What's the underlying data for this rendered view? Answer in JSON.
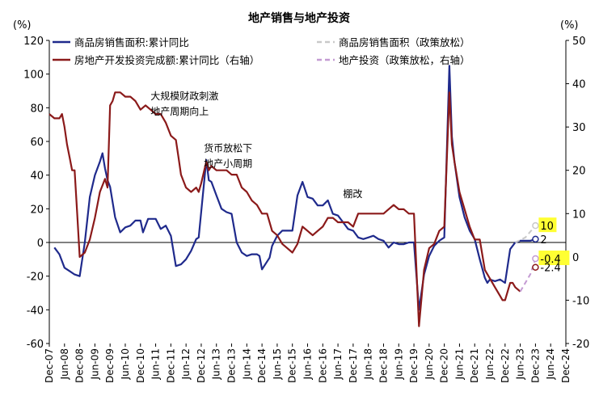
{
  "chart_data": {
    "type": "line",
    "title": "地产销售与地产投资",
    "left_unit": "(%)",
    "right_unit": "(%)",
    "ylim_left": [
      -60,
      120
    ],
    "yticks_left": [
      -60,
      -40,
      -20,
      0,
      20,
      40,
      60,
      80,
      100,
      120
    ],
    "ylim_right": [
      -20,
      50
    ],
    "yticks_right": [
      -20,
      -10,
      0,
      10,
      20,
      30,
      40,
      50
    ],
    "x_tick_labels": [
      "Dec-07",
      "Jun-08",
      "Dec-08",
      "Jun-09",
      "Dec-09",
      "Jun-10",
      "Dec-10",
      "Jun-11",
      "Dec-11",
      "Jun-12",
      "Dec-12",
      "Jun-13",
      "Dec-13",
      "Jun-14",
      "Dec-14",
      "Jun-15",
      "Dec-15",
      "Jun-16",
      "Dec-16",
      "Jun-17",
      "Dec-17",
      "Jun-18",
      "Dec-18",
      "Jun-19",
      "Dec-19",
      "Jun-20",
      "Dec-20",
      "Jun-21",
      "Dec-21",
      "Jun-22",
      "Dec-22",
      "Jun-23",
      "Dec-23",
      "Jun-24",
      "Dec-24"
    ],
    "legend": {
      "placement": "top"
    },
    "series": [
      {
        "name": "商品房销售面积:累计同比",
        "axis": "left",
        "color": "#1f2a8c",
        "dash": false,
        "points": [
          [
            "Feb-08",
            -3
          ],
          [
            "Apr-08",
            -7
          ],
          [
            "Jun-08",
            -15
          ],
          [
            "Aug-08",
            -17
          ],
          [
            "Oct-08",
            -19
          ],
          [
            "Dec-08",
            -20
          ],
          [
            "Feb-09",
            0
          ],
          [
            "Apr-09",
            27
          ],
          [
            "Jun-09",
            40
          ],
          [
            "Aug-09",
            48
          ],
          [
            "Sep-09",
            53
          ],
          [
            "Oct-09",
            44
          ],
          [
            "Nov-09",
            37
          ],
          [
            "Dec-09",
            33
          ],
          [
            "Feb-10",
            15
          ],
          [
            "Apr-10",
            6
          ],
          [
            "Jun-10",
            9
          ],
          [
            "Aug-10",
            10
          ],
          [
            "Oct-10",
            13
          ],
          [
            "Dec-10",
            13
          ],
          [
            "Jan-11",
            6
          ],
          [
            "Mar-11",
            14
          ],
          [
            "Jun-11",
            14
          ],
          [
            "Aug-11",
            8
          ],
          [
            "Oct-11",
            10
          ],
          [
            "Dec-11",
            4
          ],
          [
            "Feb-12",
            -14
          ],
          [
            "Apr-12",
            -13
          ],
          [
            "Jun-12",
            -10
          ],
          [
            "Aug-12",
            -5
          ],
          [
            "Oct-12",
            2
          ],
          [
            "Nov-12",
            3
          ],
          [
            "Feb-13",
            49
          ],
          [
            "Mar-13",
            37
          ],
          [
            "Apr-13",
            36
          ],
          [
            "Jun-13",
            28
          ],
          [
            "Aug-13",
            20
          ],
          [
            "Oct-13",
            18
          ],
          [
            "Dec-13",
            17
          ],
          [
            "Feb-14",
            0
          ],
          [
            "Apr-14",
            -6
          ],
          [
            "Jun-14",
            -8
          ],
          [
            "Aug-14",
            -7
          ],
          [
            "Oct-14",
            -7
          ],
          [
            "Nov-14",
            -8
          ],
          [
            "Dec-14",
            -16
          ],
          [
            "Mar-15",
            -9
          ],
          [
            "Apr-15",
            -2
          ],
          [
            "Jun-15",
            4
          ],
          [
            "Aug-15",
            7
          ],
          [
            "Oct-15",
            7
          ],
          [
            "Dec-15",
            7
          ],
          [
            "Feb-16",
            28
          ],
          [
            "Apr-16",
            36
          ],
          [
            "Jun-16",
            27
          ],
          [
            "Aug-16",
            26
          ],
          [
            "Oct-16",
            22
          ],
          [
            "Dec-16",
            22
          ],
          [
            "Feb-17",
            25
          ],
          [
            "Apr-17",
            17
          ],
          [
            "Jun-17",
            16
          ],
          [
            "Aug-17",
            12
          ],
          [
            "Oct-17",
            8
          ],
          [
            "Dec-17",
            7
          ],
          [
            "Feb-18",
            3
          ],
          [
            "Apr-18",
            2
          ],
          [
            "Jun-18",
            3
          ],
          [
            "Aug-18",
            4
          ],
          [
            "Oct-18",
            2
          ],
          [
            "Dec-18",
            1
          ],
          [
            "Feb-19",
            -3
          ],
          [
            "Apr-19",
            0
          ],
          [
            "Jun-19",
            -1
          ],
          [
            "Aug-19",
            -1
          ],
          [
            "Oct-19",
            0
          ],
          [
            "Dec-19",
            0
          ],
          [
            "Feb-20",
            -40
          ],
          [
            "Apr-20",
            -19
          ],
          [
            "Jun-20",
            -8
          ],
          [
            "Aug-20",
            -2
          ],
          [
            "Oct-20",
            1
          ],
          [
            "Nov-20",
            2
          ],
          [
            "Dec-20",
            3
          ],
          [
            "Feb-21",
            105
          ],
          [
            "Mar-21",
            63
          ],
          [
            "Apr-21",
            48
          ],
          [
            "Jun-21",
            27
          ],
          [
            "Aug-21",
            15
          ],
          [
            "Oct-21",
            7
          ],
          [
            "Dec-21",
            2
          ],
          [
            "Feb-22",
            -10
          ],
          [
            "Apr-22",
            -21
          ],
          [
            "May-22",
            -24
          ],
          [
            "Jun-22",
            -22
          ],
          [
            "Aug-22",
            -23
          ],
          [
            "Oct-22",
            -22
          ],
          [
            "Nov-22",
            -23
          ],
          [
            "Dec-22",
            -24
          ],
          [
            "Feb-23",
            -4
          ],
          [
            "Apr-23",
            0
          ],
          [
            "Jun-23",
            1
          ],
          [
            "Aug-23",
            1
          ],
          [
            "Oct-23",
            1
          ],
          [
            "Dec-23",
            2
          ]
        ]
      },
      {
        "name": "房地产开发投资完成额:累计同比（右轴）",
        "axis": "right",
        "color": "#8b1a1a",
        "dash": false,
        "points": [
          [
            "Dec-07",
            33
          ],
          [
            "Feb-08",
            32
          ],
          [
            "Apr-08",
            32
          ],
          [
            "May-08",
            33
          ],
          [
            "Jun-08",
            30
          ],
          [
            "Jul-08",
            26
          ],
          [
            "Aug-08",
            23
          ],
          [
            "Sep-08",
            20
          ],
          [
            "Oct-08",
            20
          ],
          [
            "Nov-08",
            10
          ],
          [
            "Dec-08",
            0
          ],
          [
            "Feb-09",
            1
          ],
          [
            "Apr-09",
            4
          ],
          [
            "Jun-09",
            9
          ],
          [
            "Aug-09",
            15
          ],
          [
            "Oct-09",
            18
          ],
          [
            "Nov-09",
            16
          ],
          [
            "Dec-09",
            35
          ],
          [
            "Jan-10",
            36
          ],
          [
            "Feb-10",
            38
          ],
          [
            "Apr-10",
            38
          ],
          [
            "Jun-10",
            37
          ],
          [
            "Aug-10",
            37
          ],
          [
            "Oct-10",
            36
          ],
          [
            "Dec-10",
            34
          ],
          [
            "Feb-11",
            35
          ],
          [
            "Apr-11",
            34
          ],
          [
            "Jun-11",
            33
          ],
          [
            "Aug-11",
            33
          ],
          [
            "Oct-11",
            31
          ],
          [
            "Dec-11",
            28
          ],
          [
            "Feb-12",
            27
          ],
          [
            "Mar-12",
            23
          ],
          [
            "Apr-12",
            19
          ],
          [
            "Jun-12",
            16
          ],
          [
            "Aug-12",
            15
          ],
          [
            "Oct-12",
            16
          ],
          [
            "Nov-12",
            15
          ],
          [
            "Dec-12",
            17
          ],
          [
            "Feb-13",
            22
          ],
          [
            "Mar-13",
            20
          ],
          [
            "Apr-13",
            21
          ],
          [
            "Jun-13",
            20
          ],
          [
            "Aug-13",
            20
          ],
          [
            "Oct-13",
            20
          ],
          [
            "Dec-13",
            19
          ],
          [
            "Feb-14",
            19
          ],
          [
            "Apr-14",
            16
          ],
          [
            "Jun-14",
            15
          ],
          [
            "Aug-14",
            13
          ],
          [
            "Oct-14",
            12
          ],
          [
            "Dec-14",
            10
          ],
          [
            "Feb-15",
            10
          ],
          [
            "Apr-15",
            6
          ],
          [
            "Jun-15",
            5
          ],
          [
            "Aug-15",
            3
          ],
          [
            "Oct-15",
            2
          ],
          [
            "Dec-15",
            1
          ],
          [
            "Feb-16",
            3
          ],
          [
            "Apr-16",
            7
          ],
          [
            "Jun-16",
            6
          ],
          [
            "Aug-16",
            5
          ],
          [
            "Oct-16",
            6
          ],
          [
            "Dec-16",
            7
          ],
          [
            "Feb-17",
            9
          ],
          [
            "Apr-17",
            9
          ],
          [
            "Jun-17",
            8
          ],
          [
            "Aug-17",
            8
          ],
          [
            "Oct-17",
            8
          ],
          [
            "Dec-17",
            7
          ],
          [
            "Feb-18",
            10
          ],
          [
            "Apr-18",
            10
          ],
          [
            "Jun-18",
            10
          ],
          [
            "Aug-18",
            10
          ],
          [
            "Oct-18",
            10
          ],
          [
            "Dec-18",
            10
          ],
          [
            "Feb-19",
            11
          ],
          [
            "Apr-19",
            12
          ],
          [
            "Jun-19",
            11
          ],
          [
            "Aug-19",
            11
          ],
          [
            "Oct-19",
            10
          ],
          [
            "Dec-19",
            10
          ],
          [
            "Feb-20",
            -16
          ],
          [
            "Apr-20",
            -3
          ],
          [
            "Jun-20",
            2
          ],
          [
            "Aug-20",
            3
          ],
          [
            "Oct-20",
            6
          ],
          [
            "Dec-20",
            7
          ],
          [
            "Feb-21",
            38
          ],
          [
            "Mar-21",
            26
          ],
          [
            "Apr-21",
            22
          ],
          [
            "Jun-21",
            15
          ],
          [
            "Aug-21",
            11
          ],
          [
            "Oct-21",
            7
          ],
          [
            "Dec-21",
            4
          ],
          [
            "Feb-22",
            4
          ],
          [
            "Apr-22",
            -3
          ],
          [
            "Jun-22",
            -5
          ],
          [
            "Aug-22",
            -7
          ],
          [
            "Oct-22",
            -9
          ],
          [
            "Nov-22",
            -10
          ],
          [
            "Dec-22",
            -10
          ],
          [
            "Feb-23",
            -6
          ],
          [
            "Mar-23",
            -6
          ],
          [
            "Apr-23",
            -7
          ],
          [
            "Jun-23",
            -8
          ]
        ]
      },
      {
        "name": "商品房销售面积（政策放松）",
        "axis": "left",
        "color": "#c9c9c9",
        "dash": true,
        "points": [
          [
            "Apr-23",
            0
          ],
          [
            "Aug-23",
            3
          ],
          [
            "Dec-23",
            10
          ]
        ]
      },
      {
        "name": "地产投资（政策放松，右轴）",
        "axis": "right",
        "color": "#c49bd3",
        "dash": true,
        "points": [
          [
            "Jun-23",
            -8
          ],
          [
            "Oct-23",
            -4
          ],
          [
            "Dec-23",
            -0.4
          ]
        ]
      }
    ],
    "end_markers": [
      {
        "series": 0,
        "axis": "left",
        "x": "Dec-23",
        "y": 2,
        "label": "2",
        "highlight": false
      },
      {
        "series": 2,
        "axis": "left",
        "x": "Dec-23",
        "y": 10,
        "label": "10",
        "highlight": true
      },
      {
        "series": 3,
        "axis": "right",
        "x": "Dec-23",
        "y": -0.4,
        "label": "-0.4",
        "highlight": true
      },
      {
        "series": 1,
        "axis": "right",
        "x": "Dec-23",
        "y": -2.4,
        "label": "-2.4",
        "highlight": false
      }
    ],
    "annotations": [
      {
        "lines": [
          "大规模财政刺激",
          "地产周期向上"
        ],
        "x": "Apr-11",
        "y": 85
      },
      {
        "lines": [
          "货币放松下",
          "地产小周期"
        ],
        "x": "Jan-13",
        "y": 54
      },
      {
        "lines": [
          "棚改"
        ],
        "x": "Aug-17",
        "y": 27
      }
    ]
  }
}
